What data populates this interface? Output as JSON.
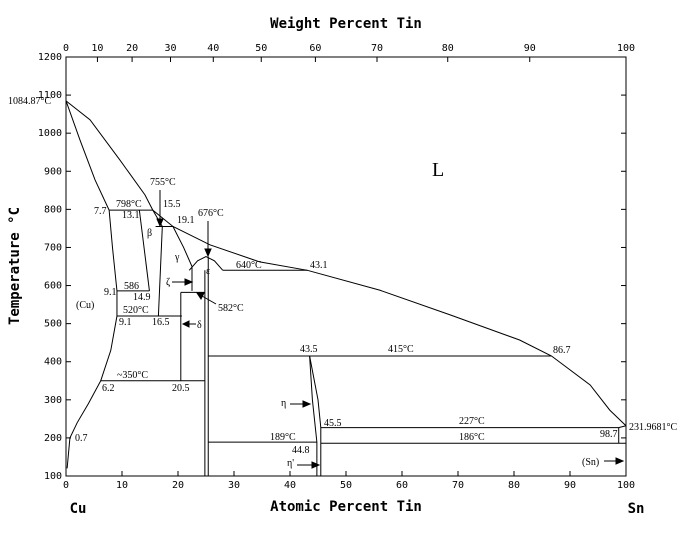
{
  "chart_data": {
    "type": "phase-diagram",
    "title": "Weight Percent Tin",
    "xlabel": "Atomic Percent Tin",
    "ylabel": "Temperature °C",
    "components": [
      "Cu",
      "Sn"
    ],
    "xlim": [
      0,
      100
    ],
    "xticks": [
      0,
      10,
      20,
      30,
      40,
      50,
      60,
      70,
      80,
      90,
      100
    ],
    "x2lim": [
      0,
      100
    ],
    "x2ticks": [
      0,
      10,
      20,
      30,
      40,
      50,
      60,
      70,
      80,
      90,
      100
    ],
    "ylim": [
      100,
      1200
    ],
    "yticks": [
      100,
      200,
      300,
      400,
      500,
      600,
      700,
      800,
      900,
      1000,
      1100,
      1200
    ],
    "color": "#000000",
    "series": [
      {
        "x": [
          0,
          4.3,
          9.6,
          14.1,
          15.5,
          19.1,
          25.7,
          34.6,
          43.1,
          56,
          68.6,
          81,
          86.7,
          93.6,
          97.1,
          100
        ],
        "values": [
          1084.87,
          1035,
          930,
          838,
          798,
          755,
          707,
          662,
          640,
          588,
          523,
          457,
          415,
          339,
          273,
          231.9681
        ]
      },
      {
        "x": [
          0,
          2.5,
          5.2,
          7.7
        ],
        "values": [
          1084.87,
          982,
          877,
          798
        ]
      },
      {
        "x": [
          7.7,
          8.3,
          9.1,
          9.1,
          8,
          6.2,
          4,
          2,
          0.7,
          0.2
        ],
        "values": [
          798,
          700,
          586,
          520,
          430,
          350,
          290,
          240,
          200,
          120
        ]
      },
      {
        "x": [
          7.7,
          15.5
        ],
        "values": [
          798,
          798
        ]
      },
      {
        "x": [
          13.1,
          14.9
        ],
        "values": [
          798,
          586
        ]
      },
      {
        "x": [
          15.5,
          17.2,
          16.5
        ],
        "values": [
          798,
          755,
          520
        ]
      },
      {
        "x": [
          16,
          19.1
        ],
        "values": [
          755,
          755
        ]
      },
      {
        "x": [
          19.1,
          21,
          22.5,
          22.5
        ],
        "values": [
          755,
          700,
          650,
          586
        ]
      },
      {
        "x": [
          9.1,
          14.9
        ],
        "values": [
          586,
          586
        ]
      },
      {
        "x": [
          9.1,
          20.7
        ],
        "values": [
          520,
          520
        ]
      },
      {
        "x": [
          22,
          23.5,
          25,
          26.5,
          28
        ],
        "values": [
          640,
          665,
          676,
          665,
          640
        ]
      },
      {
        "x": [
          28,
          43.1
        ],
        "values": [
          640,
          640
        ]
      },
      {
        "x": [
          20.5,
          24.8
        ],
        "values": [
          582,
          582
        ]
      },
      {
        "x": [
          20.5,
          20.5
        ],
        "values": [
          582,
          350
        ]
      },
      {
        "x": [
          6.2,
          24.8
        ],
        "values": [
          350,
          350
        ]
      },
      {
        "x": [
          24.8,
          24.8
        ],
        "values": [
          640,
          100
        ]
      },
      {
        "x": [
          25.4,
          25.4
        ],
        "values": [
          676,
          100
        ]
      },
      {
        "x": [
          25.4,
          86.7
        ],
        "values": [
          415,
          415
        ]
      },
      {
        "x": [
          43.5,
          44,
          44.8,
          44.8
        ],
        "values": [
          415,
          300,
          189,
          100
        ]
      },
      {
        "x": [
          43.5,
          45,
          45.5,
          45.5
        ],
        "values": [
          415,
          300,
          227,
          100
        ]
      },
      {
        "x": [
          45.5,
          98.7,
          100
        ],
        "values": [
          227,
          227,
          231.9681
        ]
      },
      {
        "x": [
          25.4,
          44.8
        ],
        "values": [
          189,
          189
        ]
      },
      {
        "x": [
          45.5,
          100
        ],
        "values": [
          186,
          186
        ]
      },
      {
        "x": [
          98.7,
          98.7
        ],
        "values": [
          227,
          186
        ]
      }
    ],
    "annotations": [
      "1084.87°C",
      "7.7",
      "798°C",
      "13.1",
      "755°C",
      "15.5",
      "19.1",
      "676°C",
      "β",
      "γ",
      "640°C",
      "43.1",
      "9.1",
      "586",
      "14.9",
      "ζ",
      "ε",
      "(Cu)",
      "520°C",
      "9.1",
      "16.5",
      "582°C",
      "δ",
      "43.5",
      "415°C",
      "86.7",
      "~350°C",
      "6.2",
      "20.5",
      "η",
      "45.5",
      "227°C",
      "231.9681°C",
      "189°C",
      "186°C",
      "98.7",
      "44.8",
      "η'",
      "0.7",
      "(Sn)",
      "L"
    ]
  }
}
